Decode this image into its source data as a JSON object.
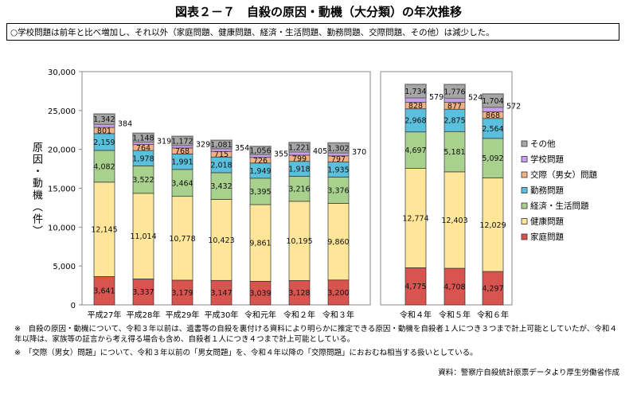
{
  "title": "図表２－７　自殺の原因・動機（大分類）の年次推移",
  "summary": "○学校問題は前年と比べ増加し、それ以外（家庭問題、健康問題、経済・生活問題、勤務問題、交際問題、その他）は減少した。",
  "notes": [
    "※　自殺の原因・動機について、令和３年以前は、遺書等の自殺を裏付ける資料により明らかに推定できる原因・動機を自殺者１人につき３つまで計上可能としていたが、令和４年以降は、家族等の証言から考え得る場合も含め、自殺者１人につき４つまで計上可能としている。",
    "※　「交際（男女）問題」について、令和３年以前の「男女問題」を、令和４年以降の「交際問題」におおむね相当する扱いとしている。"
  ],
  "source": "資料：警察庁自殺統計原票データより厚生労働省作成",
  "chart_data": {
    "type": "bar",
    "stacked": true,
    "ylabel": "原因・動機（件）",
    "ylim": [
      0,
      30000
    ],
    "yticks": [
      "0",
      "5,000",
      "10,000",
      "15,000",
      "20,000",
      "25,000",
      "30,000"
    ],
    "legend_position": "right",
    "categories": [
      "平成27年",
      "平成28年",
      "平成29年",
      "平成30年",
      "令和元年",
      "令和２年",
      "令和３年",
      "令和４年",
      "令和５年",
      "令和６年"
    ],
    "series": [
      {
        "name": "家庭問題",
        "color": "#d9534f",
        "values": [
          3641,
          3337,
          3179,
          3147,
          3039,
          3128,
          3200,
          4775,
          4708,
          4297
        ],
        "labels": [
          "3,641",
          "3,337",
          "3,179",
          "3,147",
          "3,039",
          "3,128",
          "3,200",
          "4,775",
          "4,708",
          "4,297"
        ]
      },
      {
        "name": "健康問題",
        "color": "#ffe699",
        "values": [
          12145,
          11014,
          10778,
          10423,
          9861,
          10195,
          9860,
          12774,
          12403,
          12029
        ],
        "labels": [
          "12,145",
          "11,014",
          "10,778",
          "10,423",
          "9,861",
          "10,195",
          "9,860",
          "12,774",
          "12,403",
          "12,029"
        ]
      },
      {
        "name": "経済・生活問題",
        "color": "#a9d18e",
        "values": [
          4082,
          3522,
          3464,
          3432,
          3395,
          3216,
          3376,
          4697,
          5181,
          5092
        ],
        "labels": [
          "4,082",
          "3,522",
          "3,464",
          "3,432",
          "3,395",
          "3,216",
          "3,376",
          "4,697",
          "5,181",
          "5,092"
        ]
      },
      {
        "name": "勤務問題",
        "color": "#5bc0de",
        "values": [
          2159,
          1978,
          1991,
          2018,
          1949,
          1918,
          1935,
          2968,
          2875,
          2564
        ],
        "labels": [
          "2,159",
          "1,978",
          "1,991",
          "2,018",
          "1,949",
          "1,918",
          "1,935",
          "2,968",
          "2,875",
          "2,564"
        ]
      },
      {
        "name": "交際（男女）問題",
        "color": "#f4b183",
        "values": [
          801,
          764,
          768,
          715,
          726,
          799,
          797,
          828,
          877,
          868
        ],
        "labels": [
          "801",
          "764",
          "768",
          "715",
          "726",
          "799",
          "797",
          "828",
          "877",
          "868"
        ]
      },
      {
        "name": "学校問題",
        "color": "#c9a0f0",
        "values": [
          384,
          319,
          329,
          354,
          355,
          405,
          370,
          579,
          524,
          572
        ],
        "labels": [
          "384",
          "319",
          "329",
          "354",
          "355",
          "405",
          "370",
          "579",
          "524",
          "572"
        ]
      },
      {
        "name": "その他",
        "color": "#a6a6a6",
        "values": [
          1342,
          1148,
          1172,
          1081,
          1056,
          1221,
          1302,
          1734,
          1776,
          1704
        ],
        "labels": [
          "1,342",
          "1,148",
          "1,172",
          "1,081",
          "1,056",
          "1,221",
          "1,302",
          "1,734",
          "1,776",
          "1,704"
        ]
      }
    ]
  }
}
